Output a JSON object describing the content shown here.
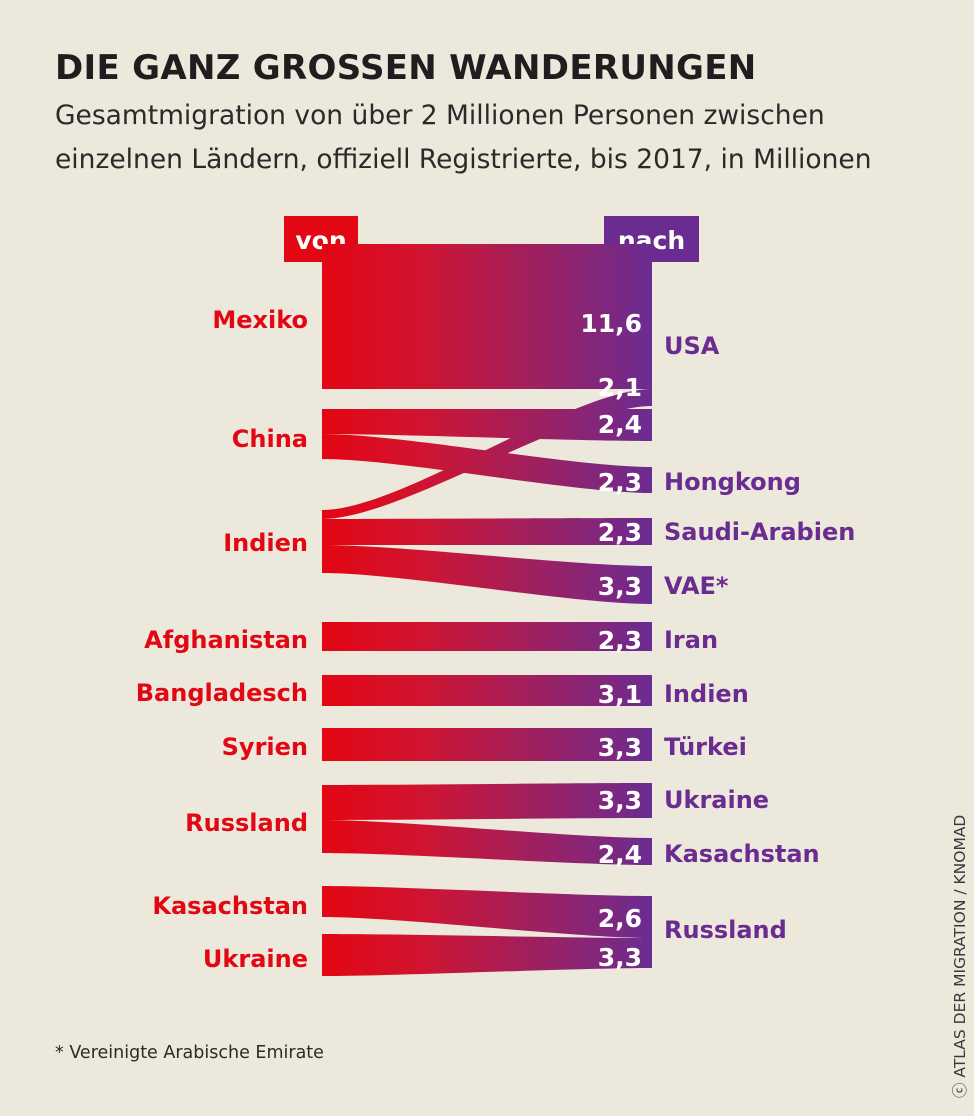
{
  "title": "DIE GANZ GROSSEN WANDERUNGEN",
  "subtitle": "Gesamtmigration von über 2 Millionen Personen zwischen einzelnen Ländern, offiziell Registrierte, bis 2017, in Millionen",
  "header_from": "von",
  "header_to": "nach",
  "colors": {
    "origin": "#e30613",
    "destination": "#6b2c91",
    "background": "#ece8dc",
    "label_white": "#ffffff"
  },
  "origins": [
    "Mexiko",
    "China",
    "Indien",
    "Afghanistan",
    "Bangladesch",
    "Syrien",
    "Russland",
    "Kasachstan",
    "Ukraine"
  ],
  "destinations": [
    "USA",
    "Hongkong",
    "Saudi-Arabien",
    "VAE*",
    "Iran",
    "Indien",
    "Türkei",
    "Ukraine",
    "Kasachstan",
    "Russland"
  ],
  "chart_data": {
    "type": "sankey",
    "unit": "Millionen",
    "flows": [
      {
        "from": "Mexiko",
        "to": "USA",
        "value": 11.6,
        "label": "11,6"
      },
      {
        "from": "Indien",
        "to": "USA",
        "value": 2.1,
        "label": "2,1"
      },
      {
        "from": "China",
        "to": "USA",
        "value": 2.4,
        "label": "2,4"
      },
      {
        "from": "China",
        "to": "Hongkong",
        "value": 2.3,
        "label": "2,3"
      },
      {
        "from": "Indien",
        "to": "Saudi-Arabien",
        "value": 2.3,
        "label": "2,3"
      },
      {
        "from": "Indien",
        "to": "VAE*",
        "value": 3.3,
        "label": "3,3"
      },
      {
        "from": "Afghanistan",
        "to": "Iran",
        "value": 2.3,
        "label": "2,3"
      },
      {
        "from": "Bangladesch",
        "to": "Indien",
        "value": 3.1,
        "label": "3,1"
      },
      {
        "from": "Syrien",
        "to": "Türkei",
        "value": 3.3,
        "label": "3,3"
      },
      {
        "from": "Russland",
        "to": "Ukraine",
        "value": 3.3,
        "label": "3,3"
      },
      {
        "from": "Russland",
        "to": "Kasachstan",
        "value": 2.4,
        "label": "2,4"
      },
      {
        "from": "Kasachstan",
        "to": "Russland",
        "value": 2.6,
        "label": "2,6"
      },
      {
        "from": "Ukraine",
        "to": "Russland",
        "value": 3.3,
        "label": "3,3"
      }
    ]
  },
  "footnote": "* Vereinigte Arabische Emirate",
  "credit": "ⓒ ATLAS DER MIGRATION / KNOMAD"
}
